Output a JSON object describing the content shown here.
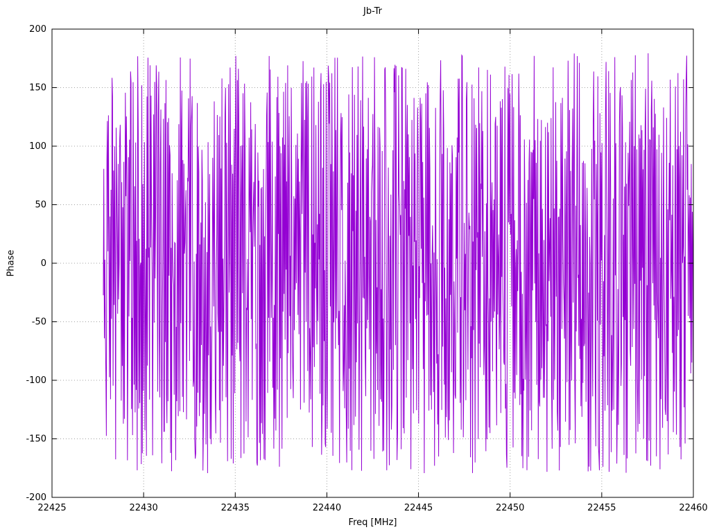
{
  "chart_data": {
    "type": "line",
    "title": "Jb-Tr",
    "xlabel": "Freq [MHz]",
    "ylabel": "Phase",
    "xlim": [
      22425,
      22460
    ],
    "ylim": [
      -200,
      200
    ],
    "xticks": [
      22425,
      22430,
      22435,
      22440,
      22445,
      22450,
      22455,
      22460
    ],
    "yticks": [
      -200,
      -150,
      -100,
      -50,
      0,
      50,
      100,
      150,
      200
    ],
    "grid": true,
    "grid_style": "dotted",
    "grid_color": "#a0a0a0",
    "border_color": "#000000",
    "legend_position": "none",
    "line_color": "#9400d3",
    "series": [
      {
        "name": "Jb-Tr phase",
        "color": "#9400d3",
        "x_start": 22427.8,
        "x_end": 22460.0,
        "n_points": 1150,
        "y_wrap": [
          -180,
          180
        ],
        "synthetic": true,
        "seed": 987654321,
        "step_scale": 520,
        "description": "Wrapped interferometric phase noise: values jump pseudo-randomly across the full -180 to +180 degree range with phase wrapping, producing dense near-vertical strokes between 22427.8 and 22460 MHz."
      }
    ]
  }
}
